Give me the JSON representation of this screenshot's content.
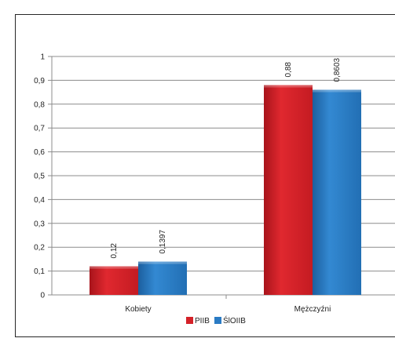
{
  "chart_data": {
    "type": "bar",
    "categories": [
      "Kobiety",
      "Mężczyźni"
    ],
    "series": [
      {
        "name": "PIIB",
        "values": [
          0.12,
          0.88
        ],
        "labels": [
          "0,12",
          "0,88"
        ],
        "color": "#d42128"
      },
      {
        "name": "ŚlOIIB",
        "values": [
          0.1397,
          0.8603
        ],
        "labels": [
          "0,1397",
          "0,8603"
        ],
        "color": "#2a7bc4"
      }
    ],
    "ylim": [
      0,
      1
    ],
    "yticks": [
      {
        "value": 0,
        "label": "0"
      },
      {
        "value": 0.1,
        "label": "0,1"
      },
      {
        "value": 0.2,
        "label": "0,2"
      },
      {
        "value": 0.3,
        "label": "0,3"
      },
      {
        "value": 0.4,
        "label": "0,4"
      },
      {
        "value": 0.5,
        "label": "0,5"
      },
      {
        "value": 0.6,
        "label": "0,6"
      },
      {
        "value": 0.7,
        "label": "0,7"
      },
      {
        "value": 0.8,
        "label": "0,8"
      },
      {
        "value": 0.9,
        "label": "0,9"
      },
      {
        "value": 1,
        "label": "1"
      }
    ],
    "grid": true,
    "legend": "bottom"
  }
}
